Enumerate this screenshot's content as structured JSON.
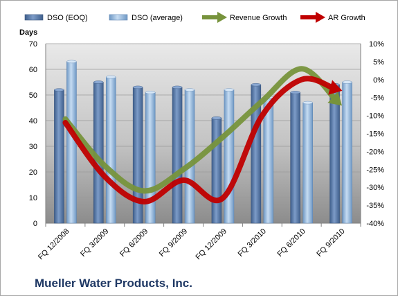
{
  "company": "Mueller Water Products, Inc.",
  "colors": {
    "dso_eoq": "#5b7fb0",
    "dso_avg": "#8fb6dd",
    "revenue_growth": "#77933c",
    "ar_growth": "#c00000",
    "plot_bg_top": "#e6e6e6",
    "plot_bg_bottom": "#8f8f8f"
  },
  "chart_data": {
    "type": "bar",
    "categories": [
      "FQ 12/2008",
      "FQ 3/2009",
      "FQ 6/2009",
      "FQ 9/2009",
      "FQ 12/2009",
      "FQ 3/2010",
      "FQ 6/2010",
      "FQ 9/2010"
    ],
    "ylabel": "Days",
    "ylim": [
      0,
      70
    ],
    "yticks": [
      "0",
      "10",
      "20",
      "30",
      "40",
      "50",
      "60",
      "70"
    ],
    "y2lim": [
      -40,
      10
    ],
    "y2ticks": [
      "-40%",
      "-35%",
      "-30%",
      "-25%",
      "-20%",
      "-15%",
      "-10%",
      "-5%",
      "0%",
      "5%",
      "10%"
    ],
    "legend_position": "top",
    "series": [
      {
        "name": "DSO (EOQ)",
        "type": "bar",
        "axis": "left",
        "values": [
          52,
          55,
          53,
          53,
          41,
          54,
          51,
          54
        ]
      },
      {
        "name": "DSO (average)",
        "type": "bar",
        "axis": "left",
        "values": [
          63,
          57,
          51,
          52,
          52,
          49,
          47,
          55
        ]
      },
      {
        "name": "Revenue Growth",
        "type": "line",
        "axis": "right",
        "values": [
          -11,
          -24,
          -31,
          -25,
          -16,
          -6,
          3,
          -7
        ]
      },
      {
        "name": "AR Growth",
        "type": "line",
        "axis": "right",
        "values": [
          -12,
          -27,
          -34,
          -28,
          -33,
          -10,
          0,
          -3
        ]
      }
    ]
  }
}
